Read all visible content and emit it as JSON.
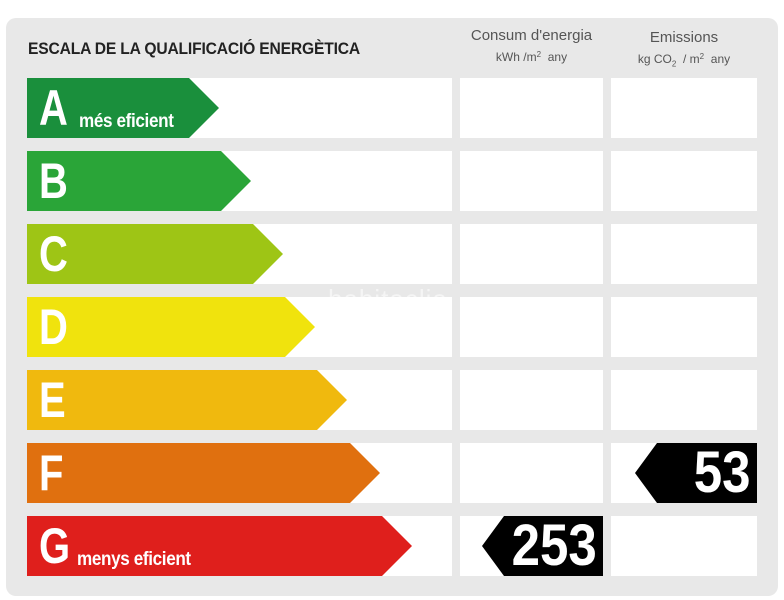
{
  "title": "ESCALA DE LA QUALIFICACIÓ ENERGÈTICA",
  "columns": {
    "consum": {
      "label": "Consum d'energia",
      "unit_prefix": "kWh /m",
      "unit_sup": "2",
      "unit_suffix": "  any"
    },
    "emissions": {
      "label": "Emissions",
      "unit_prefix": "kg CO",
      "unit_sub": "2",
      "unit_mid": "  / m",
      "unit_sup": "2",
      "unit_suffix": "  any"
    }
  },
  "rows": [
    {
      "letter": "A",
      "label": "més eficient",
      "color": "#1a8f3c",
      "consum": "",
      "emissions": ""
    },
    {
      "letter": "B",
      "label": "",
      "color": "#2aa538",
      "consum": "",
      "emissions": ""
    },
    {
      "letter": "C",
      "label": "",
      "color": "#9ec515",
      "consum": "",
      "emissions": ""
    },
    {
      "letter": "D",
      "label": "",
      "color": "#f0e30d",
      "consum": "",
      "emissions": ""
    },
    {
      "letter": "E",
      "label": "",
      "color": "#f0b90e",
      "consum": "",
      "emissions": ""
    },
    {
      "letter": "F",
      "label": "",
      "color": "#e0700f",
      "consum": "",
      "emissions": "53"
    },
    {
      "letter": "G",
      "label": "menys eficient",
      "color": "#df1f1c",
      "consum": "253",
      "emissions": ""
    }
  ],
  "watermark": "habitaclia"
}
